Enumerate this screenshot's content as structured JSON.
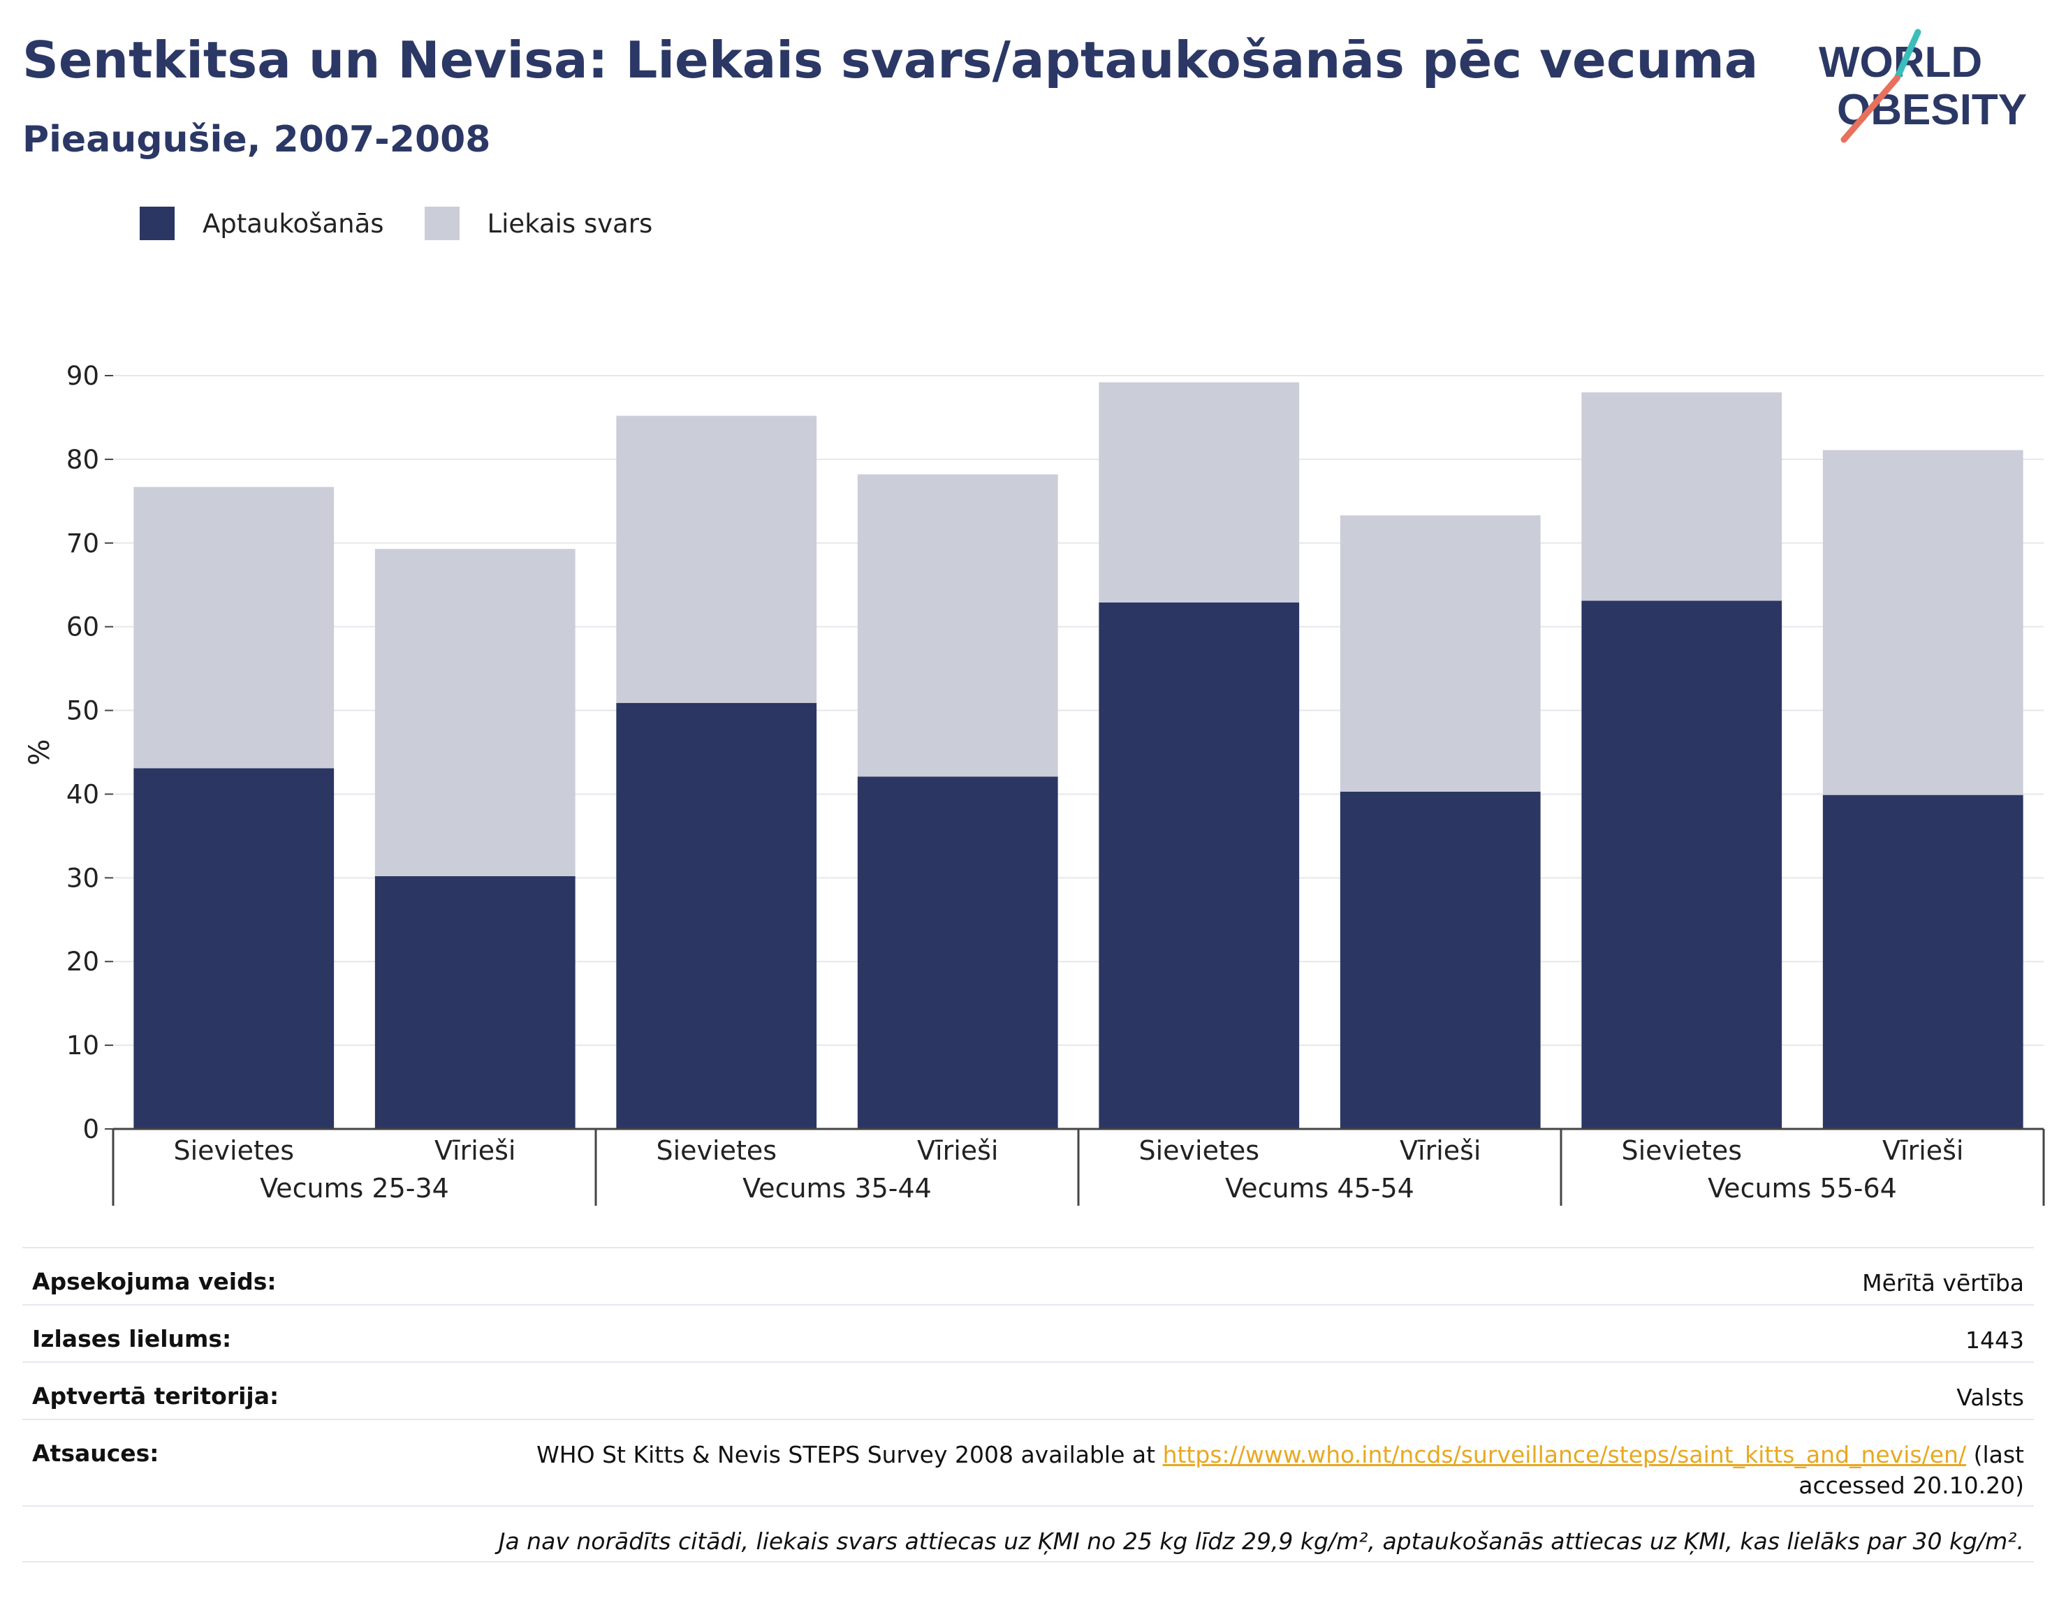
{
  "title": "Sentkitsa un Nevisa: Liekais svars/aptaukošanās pēc vecuma",
  "subtitle": "Pieaugušie, 2007-2008",
  "logo": {
    "line1": "WORLD",
    "line2": "OBESITY"
  },
  "legend": [
    {
      "label": "Aptaukošanās",
      "color": "#2b3663"
    },
    {
      "label": "Liekais svars",
      "color": "#cbcdd9"
    }
  ],
  "chart_data": {
    "type": "bar",
    "stacked": true,
    "ylabel": "%",
    "ylim": [
      0,
      90
    ],
    "yticks": [
      0,
      10,
      20,
      30,
      40,
      50,
      60,
      70,
      80,
      90
    ],
    "grid": true,
    "legend_position": "top-left",
    "groups": [
      "Vecums 25-34",
      "Vecums 35-44",
      "Vecums 45-54",
      "Vecums 55-64"
    ],
    "categories": [
      "Sievietes",
      "Vīrieši",
      "Sievietes",
      "Vīrieši",
      "Sievietes",
      "Vīrieši",
      "Sievietes",
      "Vīrieši"
    ],
    "series": [
      {
        "name": "Aptaukošanās",
        "color": "#2b3663",
        "values": [
          43.1,
          30.2,
          50.9,
          42.1,
          62.9,
          40.3,
          63.1,
          39.9
        ]
      },
      {
        "name": "Liekais svars",
        "color": "#cbcdd9",
        "values": [
          33.6,
          39.1,
          34.3,
          36.1,
          26.3,
          33.0,
          24.9,
          41.2
        ]
      }
    ]
  },
  "info": {
    "survey_type_label": "Apsekojuma veids:",
    "survey_type_value": "Mērītā vērtība",
    "sample_size_label": "Izlases lielums:",
    "sample_size_value": "1443",
    "coverage_label": "Aptvertā teritorija:",
    "coverage_value": "Valsts",
    "references_label": "Atsauces:",
    "references_prefix": "WHO St Kitts & Nevis STEPS Survey 2008 available at",
    "references_url": "https://www.who.int/ncds/surveillance/steps/saint_kitts_and_nevis/en/",
    "references_suffix": "(last",
    "references_suffix2": "accessed 20.10.20)",
    "note": "Ja nav norādīts citādi, liekais svars attiecas uz ĶMI no 25 kg līdz 29,9 kg/m², aptaukošanās attiecas uz ĶMI, kas lielāks par 30 kg/m²."
  }
}
